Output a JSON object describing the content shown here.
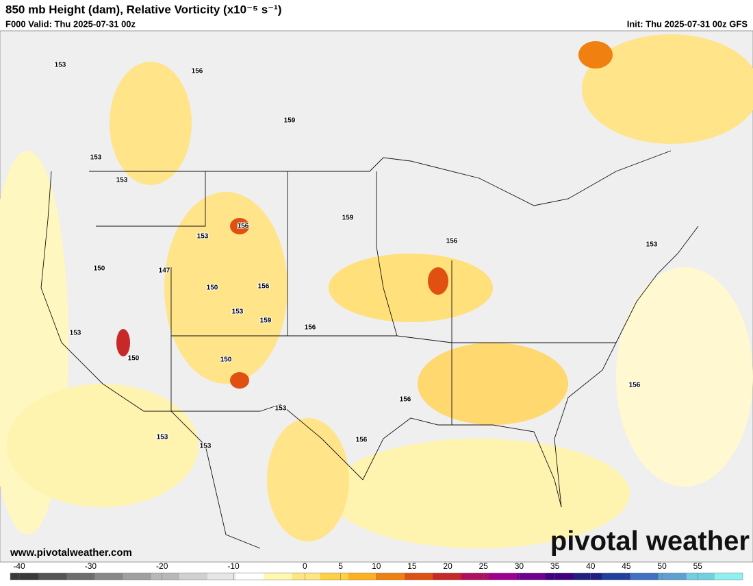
{
  "header": {
    "title": "850 mb Height (dam), Relative Vorticity (x10⁻⁵ s⁻¹)",
    "valid": "F000 Valid: Thu 2025-07-31 00z",
    "init": "Init: Thu 2025-07-31 00z GFS"
  },
  "contour_labels": [
    "153",
    "156",
    "153",
    "159",
    "153",
    "159",
    "156",
    "153",
    "156",
    "150",
    "147",
    "150",
    "156",
    "153",
    "159",
    "156",
    "153",
    "150",
    "150",
    "153",
    "156",
    "153",
    "153",
    "156",
    "156",
    "153"
  ],
  "watermark": "pivotal weather",
  "url": "www.pivotalweather.com",
  "colorbar": {
    "lim": [
      -41.25,
      61.3
    ],
    "ticks": [
      -40,
      -30,
      -20,
      -10,
      0,
      5,
      10,
      15,
      20,
      25,
      30,
      35,
      40,
      45,
      50,
      55
    ],
    "colors": [
      "#3a3a3a",
      "#555555",
      "#6e6e6e",
      "#888888",
      "#a0a0a0",
      "#b8b8b8",
      "#d0d0d0",
      "#e6e6e6",
      "#ffffff",
      "#fff8b0",
      "#ffe680",
      "#ffd040",
      "#ffb020",
      "#f08010",
      "#e05010",
      "#c82828",
      "#b01060",
      "#a00090",
      "#700090",
      "#400080",
      "#202080",
      "#2040a0",
      "#4070c0",
      "#60a0d0",
      "#70d0e0",
      "#90f0f0"
    ]
  }
}
